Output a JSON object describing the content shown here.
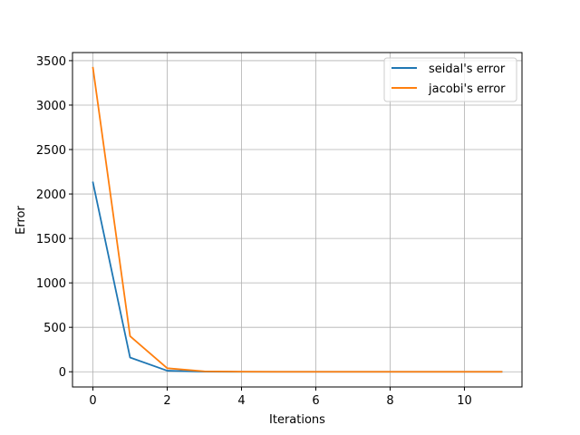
{
  "chart_data": {
    "type": "line",
    "title": "",
    "xlabel": "Iterations",
    "ylabel": "Error",
    "xlim": [
      -0.55,
      11.55
    ],
    "ylim": [
      -171,
      3591
    ],
    "xticks": [
      0,
      2,
      4,
      6,
      8,
      10
    ],
    "yticks": [
      0,
      500,
      1000,
      1500,
      2000,
      2500,
      3000,
      3500
    ],
    "grid": true,
    "legend_position": "top-right",
    "series": [
      {
        "name": "seidal's error",
        "color": "#1f77b4",
        "x": [
          0,
          1,
          2,
          3,
          4,
          5,
          6,
          7,
          8,
          9,
          10,
          11
        ],
        "y": [
          2130,
          160,
          12,
          1,
          0,
          0,
          0,
          0,
          0,
          0,
          0,
          0
        ]
      },
      {
        "name": "jacobi's error",
        "color": "#ff7f0e",
        "x": [
          0,
          1,
          2,
          3,
          4,
          5,
          6,
          7,
          8,
          9,
          10,
          11
        ],
        "y": [
          3420,
          400,
          40,
          5,
          1,
          0,
          0,
          0,
          0,
          0,
          0,
          0
        ]
      }
    ]
  }
}
